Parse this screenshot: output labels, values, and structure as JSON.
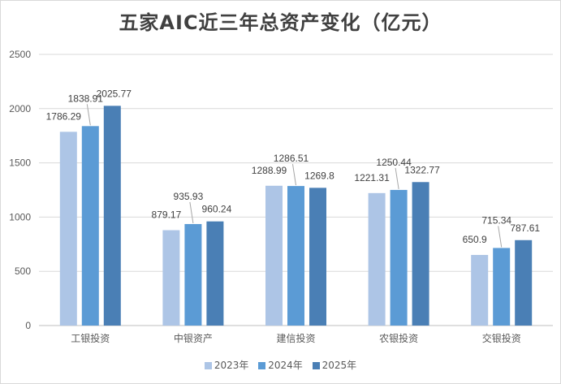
{
  "chart_data": {
    "type": "bar",
    "title": "五家AIC近三年总资产变化（亿元）",
    "categories": [
      "工银投资",
      "中银资产",
      "建信投资",
      "农银投资",
      "交银投资"
    ],
    "series": [
      {
        "name": "2023年",
        "color": "#adc5e6",
        "values": [
          1786.29,
          879.17,
          1288.99,
          1221.31,
          650.9
        ]
      },
      {
        "name": "2024年",
        "color": "#5b9bd5",
        "values": [
          1838.91,
          935.93,
          1286.51,
          1250.44,
          715.34
        ]
      },
      {
        "name": "2025年",
        "color": "#4a7fb5",
        "values": [
          2025.77,
          960.24,
          1269.8,
          1322.77,
          787.61
        ]
      }
    ],
    "data_labels": [
      [
        "1786.29",
        "879.17",
        "1288.99",
        "1221.31",
        "650.9"
      ],
      [
        "1838.91",
        "935.93",
        "1286.51",
        "1250.44",
        "715.34"
      ],
      [
        "2025.77",
        "960.24",
        "1269.8",
        "1322.77",
        "787.61"
      ]
    ],
    "ylim": [
      0,
      2500
    ],
    "yticks": [
      "0",
      "500",
      "1000",
      "1500",
      "2000",
      "2500"
    ],
    "grid": true,
    "legend_position": "bottom"
  }
}
